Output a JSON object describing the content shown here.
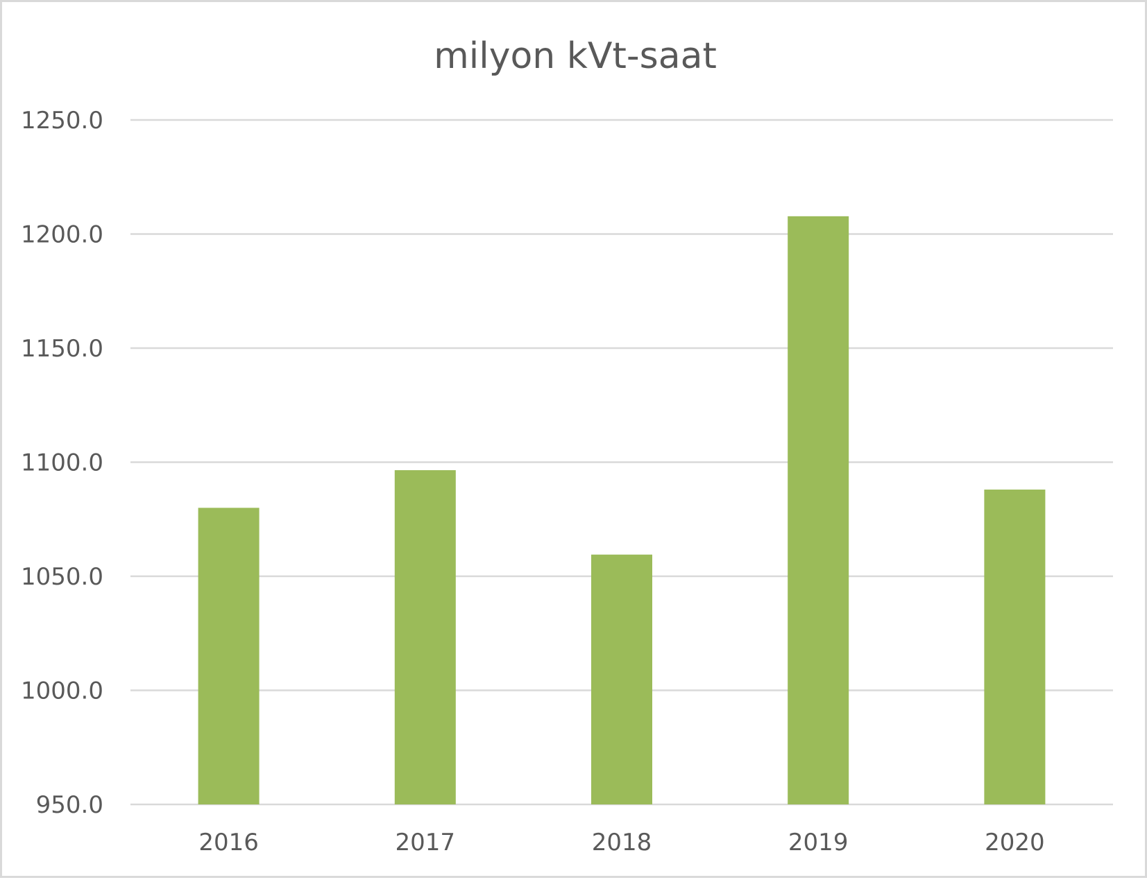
{
  "chart_data": {
    "type": "bar",
    "title": "milyon kVt-saat",
    "xlabel": "",
    "ylabel": "",
    "categories": [
      "2016",
      "2017",
      "2018",
      "2019",
      "2020"
    ],
    "values": [
      1080.0,
      1096.5,
      1059.5,
      1207.8,
      1088.0
    ],
    "ylim": [
      950.0,
      1250.0
    ],
    "yticks": [
      "950.0",
      "1000.0",
      "1050.0",
      "1100.0",
      "1150.0",
      "1200.0",
      "1250.0"
    ],
    "grid": true,
    "legend": "none",
    "bar_color": "#9bbb59",
    "grid_color": "#d9d9d9",
    "text_color": "#595959"
  }
}
